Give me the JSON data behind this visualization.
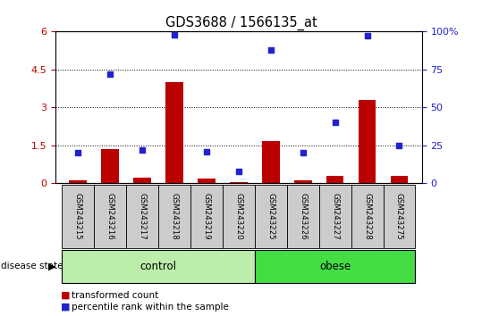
{
  "title": "GDS3688 / 1566135_at",
  "samples": [
    "GSM243215",
    "GSM243216",
    "GSM243217",
    "GSM243218",
    "GSM243219",
    "GSM243220",
    "GSM243225",
    "GSM243226",
    "GSM243227",
    "GSM243228",
    "GSM243275"
  ],
  "transformed_count": [
    0.13,
    1.35,
    0.22,
    4.0,
    0.18,
    0.04,
    1.68,
    0.13,
    0.28,
    3.3,
    0.28
  ],
  "percentile_rank": [
    20,
    72,
    22,
    98,
    21,
    8,
    88,
    20,
    40,
    97,
    25
  ],
  "groups": [
    "control",
    "control",
    "control",
    "control",
    "control",
    "control",
    "obese",
    "obese",
    "obese",
    "obese",
    "obese"
  ],
  "ylim_left": [
    0,
    6
  ],
  "ylim_right": [
    0,
    100
  ],
  "yticks_left": [
    0,
    1.5,
    3.0,
    4.5,
    6
  ],
  "yticks_right": [
    0,
    25,
    50,
    75,
    100
  ],
  "ytick_labels_left": [
    "0",
    "1.5",
    "3",
    "4.5",
    "6"
  ],
  "ytick_labels_right": [
    "0",
    "25",
    "50",
    "75",
    "100%"
  ],
  "bar_color": "#bb0000",
  "dot_color": "#2222cc",
  "control_color": "#bbeeaa",
  "obese_color": "#44dd44",
  "sample_box_color": "#cccccc",
  "legend_bar_label": "transformed count",
  "legend_dot_label": "percentile rank within the sample",
  "disease_state_label": "disease state",
  "right_axis_suffix": "%"
}
